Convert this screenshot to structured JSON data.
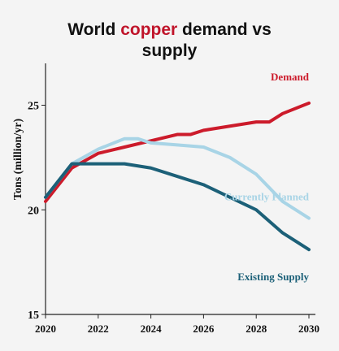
{
  "chart_data": {
    "type": "line",
    "title": {
      "line1_prefix": "World ",
      "line1_highlight": "copper",
      "line1_suffix": " demand vs",
      "line2": "supply"
    },
    "xlabel": "",
    "ylabel": "Tons (million/yr)",
    "xlim": [
      2020,
      2030
    ],
    "ylim": [
      15,
      27
    ],
    "x_ticks": [
      2020,
      2022,
      2024,
      2026,
      2028,
      2030
    ],
    "y_ticks": [
      15,
      20,
      25
    ],
    "grid": false,
    "legend": "inline labels at right end of each line",
    "series": [
      {
        "name": "Demand",
        "color": "#cc1b2b",
        "x": [
          2020,
          2021,
          2022,
          2023,
          2024,
          2025,
          2025.5,
          2026,
          2027,
          2028,
          2028.5,
          2029,
          2030
        ],
        "y": [
          20.4,
          22.0,
          22.7,
          23.0,
          23.3,
          23.6,
          23.6,
          23.8,
          24.0,
          24.2,
          24.2,
          24.6,
          25.1
        ]
      },
      {
        "name": "Currently Planned",
        "color": "#a8d4e6",
        "x": [
          2020,
          2021,
          2022,
          2023,
          2023.5,
          2024,
          2025,
          2026,
          2027,
          2028,
          2029,
          2030
        ],
        "y": [
          20.6,
          22.2,
          22.9,
          23.4,
          23.4,
          23.2,
          23.1,
          23.0,
          22.5,
          21.7,
          20.4,
          19.6
        ]
      },
      {
        "name": "Existing Supply",
        "color": "#1c6078",
        "x": [
          2020,
          2021,
          2022,
          2023,
          2024,
          2025,
          2026,
          2027,
          2028,
          2029,
          2030
        ],
        "y": [
          20.6,
          22.2,
          22.2,
          22.2,
          22.0,
          21.6,
          21.2,
          20.6,
          20.0,
          18.9,
          18.1
        ]
      }
    ]
  }
}
